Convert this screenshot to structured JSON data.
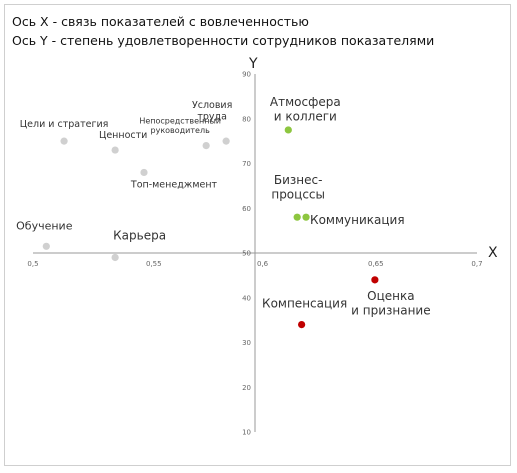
{
  "header": {
    "line1": "Ось X - связь показателей с вовлеченностью",
    "line2": "Ось Y - степень удовлетворенности сотрудников показателями"
  },
  "chart_data": {
    "type": "scatter",
    "x_axis_label": "X",
    "y_axis_label": "Y",
    "xlim": [
      0.5,
      0.7
    ],
    "ylim": [
      10,
      90
    ],
    "x_ticks": [
      "0,5",
      "0,55",
      "0,6",
      "0,65",
      "0,7"
    ],
    "y_ticks": [
      "90",
      "80",
      "70",
      "60",
      "50",
      "40",
      "30",
      "20",
      "10"
    ],
    "crosshair": {
      "x": 0.6,
      "y": 50
    },
    "grid": false,
    "legend": "none",
    "colors": {
      "gray": "#d0d0d0",
      "green": "#8dc63f",
      "red": "#c00000",
      "axis": "#999999"
    },
    "points": [
      {
        "label": "Цели и стратегия",
        "x": 0.514,
        "y": 75,
        "color": "gray"
      },
      {
        "label": "Ценности",
        "x": 0.537,
        "y": 73,
        "color": "gray"
      },
      {
        "label": "Непосредственный руководитель",
        "x": 0.578,
        "y": 74,
        "color": "gray"
      },
      {
        "label": "Топ-менеджмент",
        "x": 0.55,
        "y": 68,
        "color": "gray"
      },
      {
        "label": "Условия труда",
        "x": 0.587,
        "y": 75,
        "color": "gray"
      },
      {
        "label": "Обучение",
        "x": 0.506,
        "y": 51.5,
        "color": "gray"
      },
      {
        "label": "Карьера",
        "x": 0.537,
        "y": 49,
        "color": "gray"
      },
      {
        "label": "Атмосфера и коллеги",
        "x": 0.615,
        "y": 77.5,
        "color": "green"
      },
      {
        "label": "Бизнес-процссы",
        "x": 0.619,
        "y": 58,
        "color": "green"
      },
      {
        "label": "Коммуникация",
        "x": 0.623,
        "y": 58,
        "color": "green"
      },
      {
        "label": "Оценка и признание",
        "x": 0.654,
        "y": 44,
        "color": "red"
      },
      {
        "label": "Компенсация",
        "x": 0.621,
        "y": 34,
        "color": "red"
      }
    ]
  }
}
